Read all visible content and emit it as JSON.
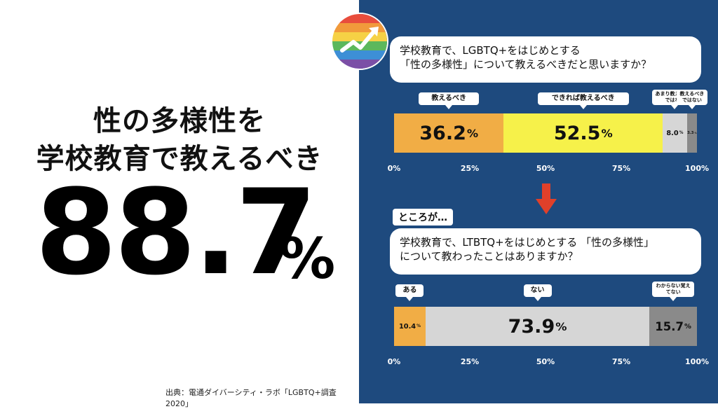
{
  "headline": {
    "line1": "性の多様性を",
    "line2": "学校教育で教えるべき",
    "value": "88.7",
    "unit": "%"
  },
  "source": "出典：電通ダイバーシティ・ラボ「LGBTQ+調査2020」",
  "logo_colors": [
    "#e84d3d",
    "#f19a3b",
    "#f6d145",
    "#5cb85c",
    "#3d8fd6",
    "#7b4fa6"
  ],
  "q1": {
    "question_line1": "学校教育で、LGBTQ+をはじめとする",
    "question_line2": "「性の多様性」について教えるべきだと思いますか？"
  },
  "transition": "ところが…",
  "q2": {
    "question_line1": "学校教育で、LTBTQ+をはじめとする 「性の多様性」",
    "question_line2": "について教わったことはありますか？"
  },
  "chart_data": [
    {
      "type": "bar",
      "orientation": "horizontal-stacked",
      "categories": [
        "教えるべき",
        "できれば教えるべき",
        "あまり教えるべきではない",
        "教えるべきではない"
      ],
      "values": [
        36.2,
        52.5,
        8.0,
        3.3
      ],
      "value_labels": [
        "36.2",
        "52.5",
        "8.0",
        "3.3"
      ],
      "colors": [
        "#f1ad45",
        "#f6f14a",
        "#d6d6d6",
        "#8a8a8a"
      ],
      "xlim": [
        0,
        100
      ],
      "ticks": [
        "0%",
        "25%",
        "50%",
        "75%",
        "100%"
      ]
    },
    {
      "type": "bar",
      "orientation": "horizontal-stacked",
      "categories": [
        "ある",
        "ない",
        "わからない覚えてない"
      ],
      "values": [
        10.4,
        73.9,
        15.7
      ],
      "value_labels": [
        "10.4",
        "73.9",
        "15.7"
      ],
      "colors": [
        "#f1ad45",
        "#d6d6d6",
        "#8a8a8a"
      ],
      "xlim": [
        0,
        100
      ],
      "ticks": [
        "0%",
        "25%",
        "50%",
        "75%",
        "100%"
      ]
    }
  ]
}
